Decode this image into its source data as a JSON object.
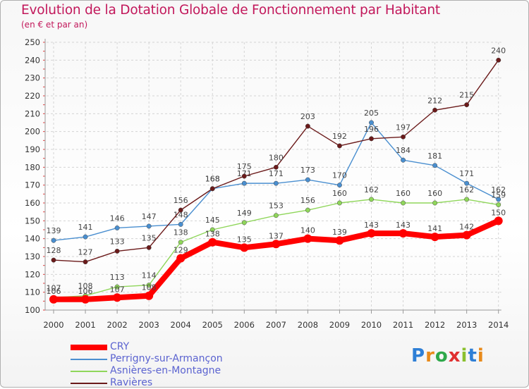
{
  "header": {
    "title": "Evolution de la Dotation Globale de Fonctionnement par Habitant",
    "subtitle": "(en € et par an)"
  },
  "brand": {
    "letters": [
      "P",
      "r",
      "o",
      "x",
      "i",
      "t",
      "i"
    ]
  },
  "chart_data": {
    "type": "line",
    "title": "Evolution de la Dotation Globale de Fonctionnement par Habitant",
    "subtitle": "(en € et par an)",
    "xlabel": "",
    "ylabel": "",
    "x": [
      "2000",
      "2001",
      "2002",
      "2003",
      "2004",
      "2005",
      "2006",
      "2007",
      "2008",
      "2009",
      "2010",
      "2011",
      "2012",
      "2013",
      "2014"
    ],
    "ylim": [
      100,
      250
    ],
    "yticks": [
      100,
      110,
      120,
      130,
      140,
      150,
      160,
      170,
      180,
      190,
      200,
      210,
      220,
      230,
      240,
      250
    ],
    "grid": true,
    "legend_position": "bottom-left",
    "series": [
      {
        "name": "CRY",
        "color": "#ff0000",
        "values": [
          106,
          106,
          107,
          108,
          129,
          138,
          135,
          137,
          140,
          139,
          143,
          143,
          141,
          142,
          150
        ]
      },
      {
        "name": "Perrigny-sur-Armançon",
        "color": "#4a8fd0",
        "values": [
          139,
          141,
          146,
          147,
          148,
          168,
          171,
          171,
          173,
          170,
          205,
          184,
          181,
          171,
          162
        ]
      },
      {
        "name": "Asnières-en-Montagne",
        "color": "#8fd65a",
        "values": [
          107,
          108,
          113,
          114,
          138,
          145,
          149,
          153,
          156,
          160,
          162,
          160,
          160,
          162,
          159
        ]
      },
      {
        "name": "Ravières",
        "color": "#6b1a1a",
        "values": [
          128,
          127,
          133,
          135,
          156,
          168,
          175,
          180,
          203,
          192,
          196,
          197,
          212,
          215,
          240
        ]
      }
    ]
  }
}
